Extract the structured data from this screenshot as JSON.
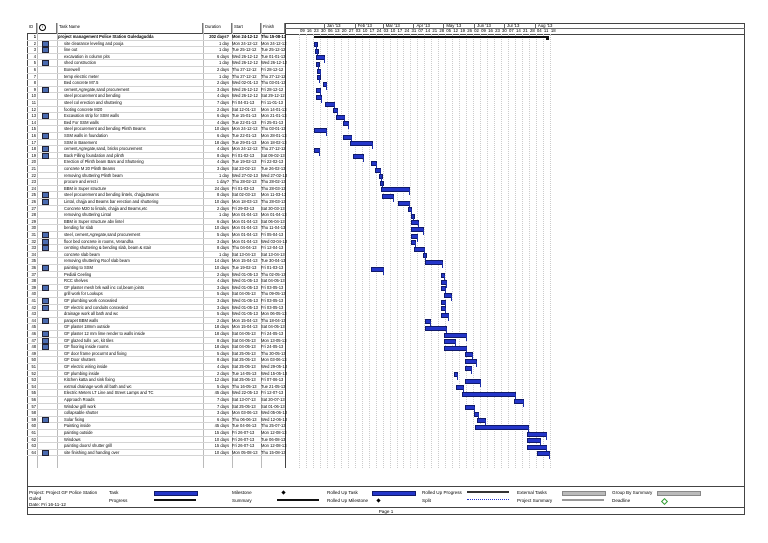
{
  "table": {
    "headers": [
      "ID",
      "i",
      "Task Name",
      "Duration",
      "Start",
      "Finish"
    ],
    "rows": [
      {
        "id": "1",
        "name": "project management Police Station Guledagudda",
        "dur": "202 days?",
        "start": "Mon 24-12-12",
        "finish": "Thu 15-08-13",
        "summary": true,
        "note": false
      },
      {
        "id": "2",
        "name": "site clearance leveling and pooja",
        "dur": "1 day",
        "start": "Mon 24-12-12",
        "finish": "Mon 24-12-12",
        "note": true
      },
      {
        "id": "3",
        "name": "line out",
        "dur": "1 day",
        "start": "Tue 25-12-12",
        "finish": "Tue 25-12-12",
        "note": true
      },
      {
        "id": "4",
        "name": "excavation in column pits",
        "dur": "6 days",
        "start": "Wed 26-12-12",
        "finish": "Tue 01-01-13",
        "note": false
      },
      {
        "id": "5",
        "name": "shed construction",
        "dur": "1 day",
        "start": "Wed 26-12-12",
        "finish": "Wed 26-12-12",
        "note": true
      },
      {
        "id": "6",
        "name": "Borewell",
        "dur": "2 days",
        "start": "Thu 27-12-12",
        "finish": "Fri 28-12-12",
        "note": false
      },
      {
        "id": "7",
        "name": "temp electric meter",
        "dur": "1 day",
        "start": "Thu 27-12-12",
        "finish": "Thu 27-12-12",
        "note": false
      },
      {
        "id": "8",
        "name": "Bed concrete M7.5",
        "dur": "2 days",
        "start": "Wed 02-01-13",
        "finish": "Thu 03-01-13",
        "note": false
      },
      {
        "id": "9",
        "name": "cement,Agregate,sand procurement",
        "dur": "3 days",
        "start": "Wed 26-12-12",
        "finish": "Fri 28-12-12",
        "note": true
      },
      {
        "id": "10",
        "name": "steel procurement and bending",
        "dur": "4 days",
        "start": "Wed 26-12-12",
        "finish": "Sat 29-12-12",
        "note": false
      },
      {
        "id": "11",
        "name": "steel col erection and shuttering",
        "dur": "7 days",
        "start": "Fri 04-01-13",
        "finish": "Fri 11-01-13",
        "note": false
      },
      {
        "id": "12",
        "name": "footing concrete M20",
        "dur": "2 days",
        "start": "Sat 12-01-13",
        "finish": "Mon 14-01-13",
        "note": false
      },
      {
        "id": "13",
        "name": "Excavation strip for SSM walls",
        "dur": "6 days",
        "start": "Tue 15-01-13",
        "finish": "Mon 21-01-13",
        "note": true
      },
      {
        "id": "14",
        "name": "Bed For SSM walls",
        "dur": "4 days",
        "start": "Tue 22-01-13",
        "finish": "Fri 25-01-13",
        "note": false
      },
      {
        "id": "15",
        "name": "steel procurement and bending Plinth Beams",
        "dur": "10 days",
        "start": "Mon 24-12-12",
        "finish": "Thu 03-01-13",
        "note": false
      },
      {
        "id": "16",
        "name": "SSM walls in foundation",
        "dur": "6 days",
        "start": "Tue 22-01-13",
        "finish": "Mon 28-01-13",
        "note": true
      },
      {
        "id": "17",
        "name": "SSM in Basement",
        "dur": "18 days",
        "start": "Tue 29-01-13",
        "finish": "Mon 18-02-13",
        "note": false
      },
      {
        "id": "18",
        "name": "cement,Agregate,sand, bricks procurement",
        "dur": "4 days",
        "start": "Mon 24-12-12",
        "finish": "Thu 27-12-12",
        "note": true
      },
      {
        "id": "19",
        "name": "Back Filling foundation and plinth",
        "dur": "8 days",
        "start": "Fri 01-02-13",
        "finish": "Sat 09-02-13",
        "note": true
      },
      {
        "id": "20",
        "name": "Erection of Plinth beam Bars and Shuttering",
        "dur": "4 days",
        "start": "Tue 19-02-13",
        "finish": "Fri 22-02-13",
        "note": false
      },
      {
        "id": "21",
        "name": "concrete M 20 Plinth Beams",
        "dur": "3 days",
        "start": "Sat 23-02-13",
        "finish": "Tue 26-02-13",
        "note": false
      },
      {
        "id": "22",
        "name": "removing shuttering Plinth beam",
        "dur": "1 day",
        "start": "Wed 27-02-13",
        "finish": "Wed 27-02-13",
        "note": false
      },
      {
        "id": "23",
        "name": "procure and erect i",
        "dur": "1 day?",
        "start": "Thu 28-02-13",
        "finish": "Thu 28-02-13",
        "note": false
      },
      {
        "id": "24",
        "name": "BBM in Super structure",
        "dur": "24 days",
        "start": "Fri 01-03-13",
        "finish": "Thu 28-03-13",
        "note": false
      },
      {
        "id": "25",
        "name": "steel procurement and bending lintels, chajja,Beams",
        "dur": "8 days",
        "start": "Sat 02-03-13",
        "finish": "Mon 11-03-13",
        "note": true
      },
      {
        "id": "26",
        "name": "Lintal, chajja and Beams bar erection and shuttering",
        "dur": "10 days",
        "start": "Mon 18-03-13",
        "finish": "Thu 28-03-13",
        "note": true
      },
      {
        "id": "27",
        "name": "Concrete M20 to lintals, chajja and Beams,etc",
        "dur": "2 days",
        "start": "Fri 29-03-13",
        "finish": "Sat 30-03-13",
        "note": false
      },
      {
        "id": "28",
        "name": "removing shuttering Lintal",
        "dur": "1 day",
        "start": "Mon 01-04-13",
        "finish": "Mon 01-04-13",
        "note": false
      },
      {
        "id": "29",
        "name": "BBM in Super structure abv lintel",
        "dur": "6 days",
        "start": "Mon 01-04-13",
        "finish": "Sat 06-04-13",
        "note": false
      },
      {
        "id": "30",
        "name": "bending for slab",
        "dur": "10 days",
        "start": "Mon 01-04-13",
        "finish": "Thu 11-04-13",
        "note": false
      },
      {
        "id": "31",
        "name": "steel, cement,Agregate,sand procurement",
        "dur": "5 days",
        "start": "Mon 01-04-13",
        "finish": "Fri 05-04-13",
        "note": true
      },
      {
        "id": "32",
        "name": "floor bed concrete in rooms, Verandha",
        "dur": "3 days",
        "start": "Mon 01-04-13",
        "finish": "Wed 03-04-13",
        "note": true
      },
      {
        "id": "33",
        "name": "centring shuttering & bending slab, beam & stair",
        "dur": "8 days",
        "start": "Thu 04-04-13",
        "finish": "Fri 12-04-13",
        "note": true
      },
      {
        "id": "34",
        "name": "concrete slab beam",
        "dur": "1 day",
        "start": "Sat 13-04-13",
        "finish": "Sat 13-04-13",
        "note": false
      },
      {
        "id": "35",
        "name": "removing shuttering Roof slab beam",
        "dur": "14 days",
        "start": "Mon 15-04-13",
        "finish": "Tue 30-04-13",
        "note": false
      },
      {
        "id": "36",
        "name": "painting to SSM",
        "dur": "10 days",
        "start": "Tue 19-02-13",
        "finish": "Fri 01-03-13",
        "note": true
      },
      {
        "id": "37",
        "name": "Pediali Ceeling",
        "dur": "2 days",
        "start": "Wed 01-05-13",
        "finish": "Thu 02-05-13",
        "note": false
      },
      {
        "id": "38",
        "name": "RCC shelves",
        "dur": "4 days",
        "start": "Wed 01-05-13",
        "finish": "Sat 04-05-13",
        "note": false
      },
      {
        "id": "39",
        "name": "GF plaster mesh brk wall inc col,beam joints",
        "dur": "3 days",
        "start": "Wed 01-05-13",
        "finish": "Fri 03-05-13",
        "note": true
      },
      {
        "id": "40",
        "name": "grill work for Lookups",
        "dur": "5 days",
        "start": "Sat 04-05-13",
        "finish": "Thu 09-05-13",
        "note": false
      },
      {
        "id": "41",
        "name": "GF plumbing work concealed",
        "dur": "3 days",
        "start": "Wed 01-05-13",
        "finish": "Fri 03-05-13",
        "note": true
      },
      {
        "id": "42",
        "name": "GF electric and conduits concealed",
        "dur": "3 days",
        "start": "Wed 01-05-13",
        "finish": "Fri 03-05-13",
        "note": true
      },
      {
        "id": "43",
        "name": "drainage work all bath and wc",
        "dur": "5 days",
        "start": "Wed 01-05-13",
        "finish": "Mon 06-05-13",
        "note": false
      },
      {
        "id": "44",
        "name": "parapet BBM walls",
        "dur": "2 days",
        "start": "Mon 15-04-13",
        "finish": "Thu 18-04-13",
        "note": true
      },
      {
        "id": "45",
        "name": "GF plaster 18mm outside",
        "dur": "18 days",
        "start": "Mon 15-04-13",
        "finish": "Sat 04-05-13",
        "note": false
      },
      {
        "id": "46",
        "name": "GF plaster 12 mm lime render to walls inside",
        "dur": "18 days",
        "start": "Sat 04-05-13",
        "finish": "Fri 24-05-13",
        "note": true
      },
      {
        "id": "47",
        "name": "GF glazed tulls ,wc, kit tiles",
        "dur": "8 days",
        "start": "Sat 04-05-13",
        "finish": "Mon 13-05-13",
        "note": true
      },
      {
        "id": "48",
        "name": "GF flooring inside rooms",
        "dur": "18 days",
        "start": "Sat 04-05-13",
        "finish": "Fri 24-05-13",
        "note": true
      },
      {
        "id": "49",
        "name": "GF door frame procurmt and fixing",
        "dur": "5 days",
        "start": "Sat 25-05-13",
        "finish": "Thu 30-05-13",
        "note": false
      },
      {
        "id": "50",
        "name": "GF Door shutters",
        "dur": "8 days",
        "start": "Sat 25-05-13",
        "finish": "Mon 03-06-13",
        "note": false
      },
      {
        "id": "51",
        "name": "GF electric wiring inside",
        "dur": "4 days",
        "start": "Sat 25-05-13",
        "finish": "Wed 29-05-13",
        "note": false
      },
      {
        "id": "52",
        "name": "GF plumbing inside",
        "dur": "2 days",
        "start": "Tue 14-05-13",
        "finish": "Wed 15-05-13",
        "note": false
      },
      {
        "id": "53",
        "name": "Kitchen katta and sink fixing",
        "dur": "12 days",
        "start": "Sat 25-05-13",
        "finish": "Fri 07-06-13",
        "note": false
      },
      {
        "id": "54",
        "name": "extrnal drainage work all bath and wc",
        "dur": "5 days",
        "start": "Thu 16-05-13",
        "finish": "Tue 21-05-13",
        "note": false
      },
      {
        "id": "55",
        "name": "Electric Meters LT Line and Street Lamps and TC",
        "dur": "45 days",
        "start": "Wed 22-05-13",
        "finish": "Fri 12-07-13",
        "note": false
      },
      {
        "id": "56",
        "name": "Approach Roads",
        "dur": "7 days",
        "start": "Sat 13-07-13",
        "finish": "Sat 20-07-13",
        "note": false
      },
      {
        "id": "57",
        "name": "Window grill work",
        "dur": "7 days",
        "start": "Sat 25-05-13",
        "finish": "Sat 01-06-13",
        "note": false
      },
      {
        "id": "58",
        "name": "collapsable shutter",
        "dur": "3 days",
        "start": "Mon 03-06-13",
        "finish": "Wed 05-06-13",
        "note": false
      },
      {
        "id": "59",
        "name": "Solar fixing",
        "dur": "6 days",
        "start": "Thu 06-06-13",
        "finish": "Wed 12-06-13",
        "note": true
      },
      {
        "id": "60",
        "name": "Painting inside",
        "dur": "45 days",
        "start": "Tue 04-06-13",
        "finish": "Thu 25-07-13",
        "note": false
      },
      {
        "id": "61",
        "name": "painting outside",
        "dur": "15 days",
        "start": "Fri 26-07-13",
        "finish": "Mon 12-08-13",
        "note": false
      },
      {
        "id": "62",
        "name": "Windows",
        "dur": "10 days",
        "start": "Fri 26-07-13",
        "finish": "Tue 06-08-13",
        "note": false
      },
      {
        "id": "63",
        "name": "painting doors/ shutter grill",
        "dur": "15 days",
        "start": "Fri 26-07-13",
        "finish": "Mon 12-08-13",
        "note": false
      },
      {
        "id": "64",
        "name": "site finishing and handing over",
        "dur": "10 days",
        "start": "Mon 05-08-13",
        "finish": "Thu 15-08-13",
        "note": true
      }
    ]
  },
  "timescale": {
    "months": [
      "Jan '13",
      "Feb '13",
      "Mar '13",
      "Apr '13",
      "May '13",
      "Jun '13",
      "Jul '13",
      "Aug '13"
    ],
    "weeks": [
      "09",
      "16",
      "23",
      "30",
      "06",
      "13",
      "20",
      "27",
      "03",
      "10",
      "17",
      "24",
      "03",
      "10",
      "17",
      "24",
      "31",
      "07",
      "14",
      "21",
      "28",
      "05",
      "12",
      "19",
      "26",
      "02",
      "09",
      "16",
      "23",
      "30",
      "07",
      "14",
      "21",
      "28",
      "04",
      "11",
      "18"
    ]
  },
  "legend": {
    "project_label": "Project: Project GF Police Station Guled",
    "date_label": "Date: Fri 16-11-12",
    "items": [
      {
        "label": "Task",
        "kind": "task"
      },
      {
        "label": "Progress",
        "kind": "progress"
      },
      {
        "label": "Milestone",
        "kind": "milestone"
      },
      {
        "label": "Summary",
        "kind": "summary"
      },
      {
        "label": "Rolled Up Task",
        "kind": "rtask"
      },
      {
        "label": "Rolled Up Milestone",
        "kind": "rmilestone"
      },
      {
        "label": "Rolled Up Progress",
        "kind": "rprogress"
      },
      {
        "label": "Split",
        "kind": "split"
      },
      {
        "label": "External Tasks",
        "kind": "ext"
      },
      {
        "label": "Project Summary",
        "kind": "psummary"
      },
      {
        "label": "Group By Summary",
        "kind": "group"
      },
      {
        "label": "Deadline",
        "kind": "deadline"
      }
    ]
  },
  "colors": {
    "task": "#2436c9",
    "summary": "#111111",
    "grid": "#cccccc"
  },
  "footer": {
    "page": "Page 1"
  }
}
